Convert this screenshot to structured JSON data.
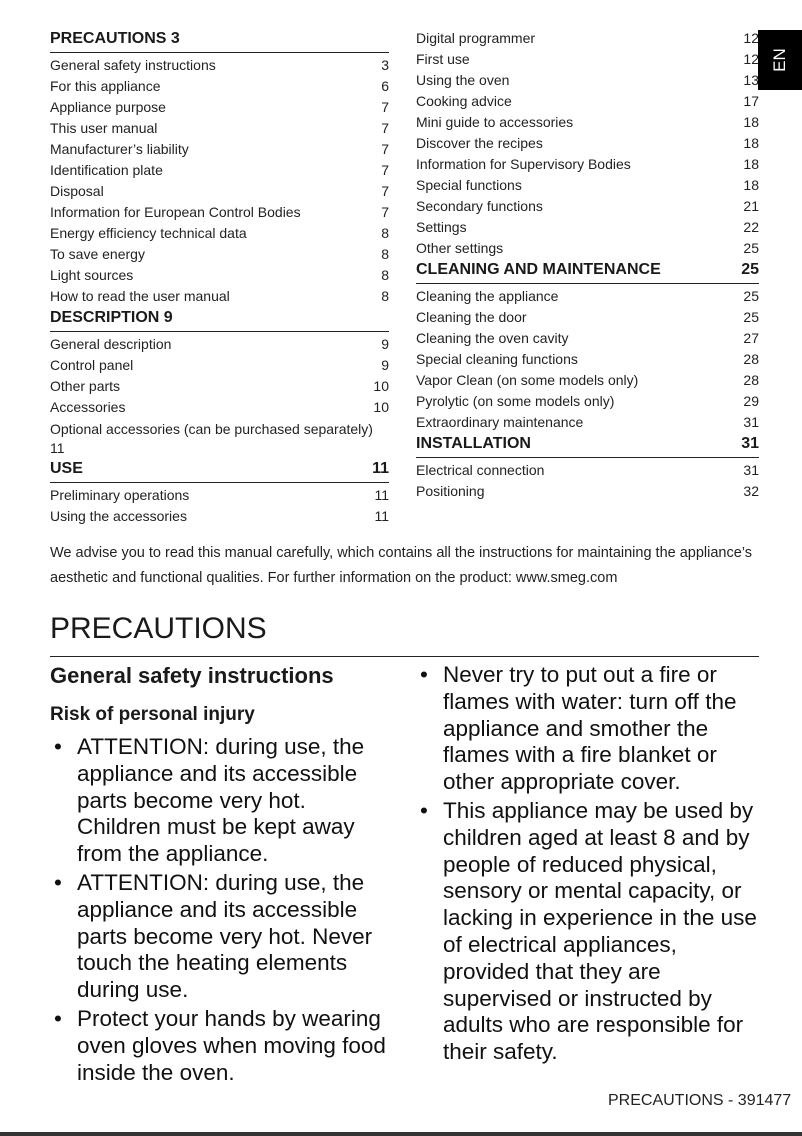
{
  "toc_left": {
    "sections": [
      {
        "title": "PRECAUTIONS 3",
        "items": [
          [
            "General safety instructions",
            "3"
          ],
          [
            "For this appliance",
            "6"
          ],
          [
            "Appliance purpose",
            "7"
          ],
          [
            "This user manual",
            "7"
          ],
          [
            "Manufacturer’s liability",
            "7"
          ],
          [
            "Identification plate",
            "7"
          ],
          [
            "Disposal",
            "7"
          ],
          [
            "Information for European Control Bodies",
            "7"
          ],
          [
            "Energy efficiency technical data",
            "8"
          ],
          [
            "To save energy",
            "8"
          ],
          [
            "Light sources",
            "8"
          ],
          [
            "How to read the user manual",
            "8"
          ]
        ]
      },
      {
        "title": "DESCRIPTION 9",
        "items": [
          [
            "General description",
            "9"
          ],
          [
            "Control panel",
            "9"
          ],
          [
            "Other parts",
            "10"
          ],
          [
            "Accessories",
            "10"
          ],
          [
            "Optional accessories (can be purchased separately) 11",
            ""
          ]
        ]
      },
      {
        "title": "USE",
        "page": "11",
        "items": [
          [
            "Preliminary operations",
            "11"
          ],
          [
            "Using the accessories",
            "11"
          ]
        ]
      }
    ]
  },
  "toc_right": {
    "items": [
      [
        "Digital programmer",
        "12"
      ],
      [
        "First use",
        "12"
      ],
      [
        "Using the oven",
        "13"
      ],
      [
        "Cooking advice",
        "17"
      ],
      [
        "Mini guide to accessories",
        "18"
      ],
      [
        "Discover the recipes",
        "18"
      ],
      [
        "Information for Supervisory Bodies",
        "18"
      ],
      [
        "Special functions",
        "18"
      ],
      [
        "Secondary functions",
        "21"
      ],
      [
        "Settings",
        "22"
      ],
      [
        "Other settings",
        "25"
      ]
    ],
    "sections": [
      {
        "title": "CLEANING AND MAINTENANCE",
        "page": "25",
        "items": [
          [
            "Cleaning the appliance",
            "25"
          ],
          [
            "Cleaning the door",
            "25"
          ],
          [
            "Cleaning the oven cavity",
            "27"
          ],
          [
            "Special cleaning functions",
            "28"
          ],
          [
            "Vapor Clean (on some models only)",
            "28"
          ],
          [
            "Pyrolytic (on some models only)",
            "29"
          ],
          [
            "Extraordinary maintenance",
            "31"
          ]
        ]
      },
      {
        "title": "INSTALLATION",
        "page": "31",
        "items": [
          [
            "Electrical connection",
            "31"
          ],
          [
            "Positioning",
            "32"
          ]
        ]
      }
    ]
  },
  "language_tab": "EN",
  "intro": "We advise you to read this manual carefully, which contains all the instructions for maintaining the appliance’s aesthetic and functional qualities. For further information on the product: www.smeg.com",
  "page_title": "PRECAUTIONS",
  "section_title": "General safety instructions",
  "subsection_title": "Risk of personal injury",
  "bullets_left": [
    "ATTENTION: during use, the appliance and its accessible parts become very hot. Children must be kept away from the appliance.",
    "ATTENTION: during use, the appliance and its accessible parts become very hot. Never touch the heating elements during use.",
    "Protect your hands by wearing oven gloves when moving food inside the oven."
  ],
  "bullets_right": [
    "Never try to put out a fire or flames with water: turn off the appliance and smother the flames with a fire blanket or other appropriate cover.",
    "This appliance may be used by children aged at least 8 and by people of reduced physical, sensory or mental capacity, or lacking in experience in the use of electrical appliances, provided that they are supervised or instructed by adults who are responsible for their safety."
  ],
  "footer": "PRECAUTIONS  -  391477"
}
